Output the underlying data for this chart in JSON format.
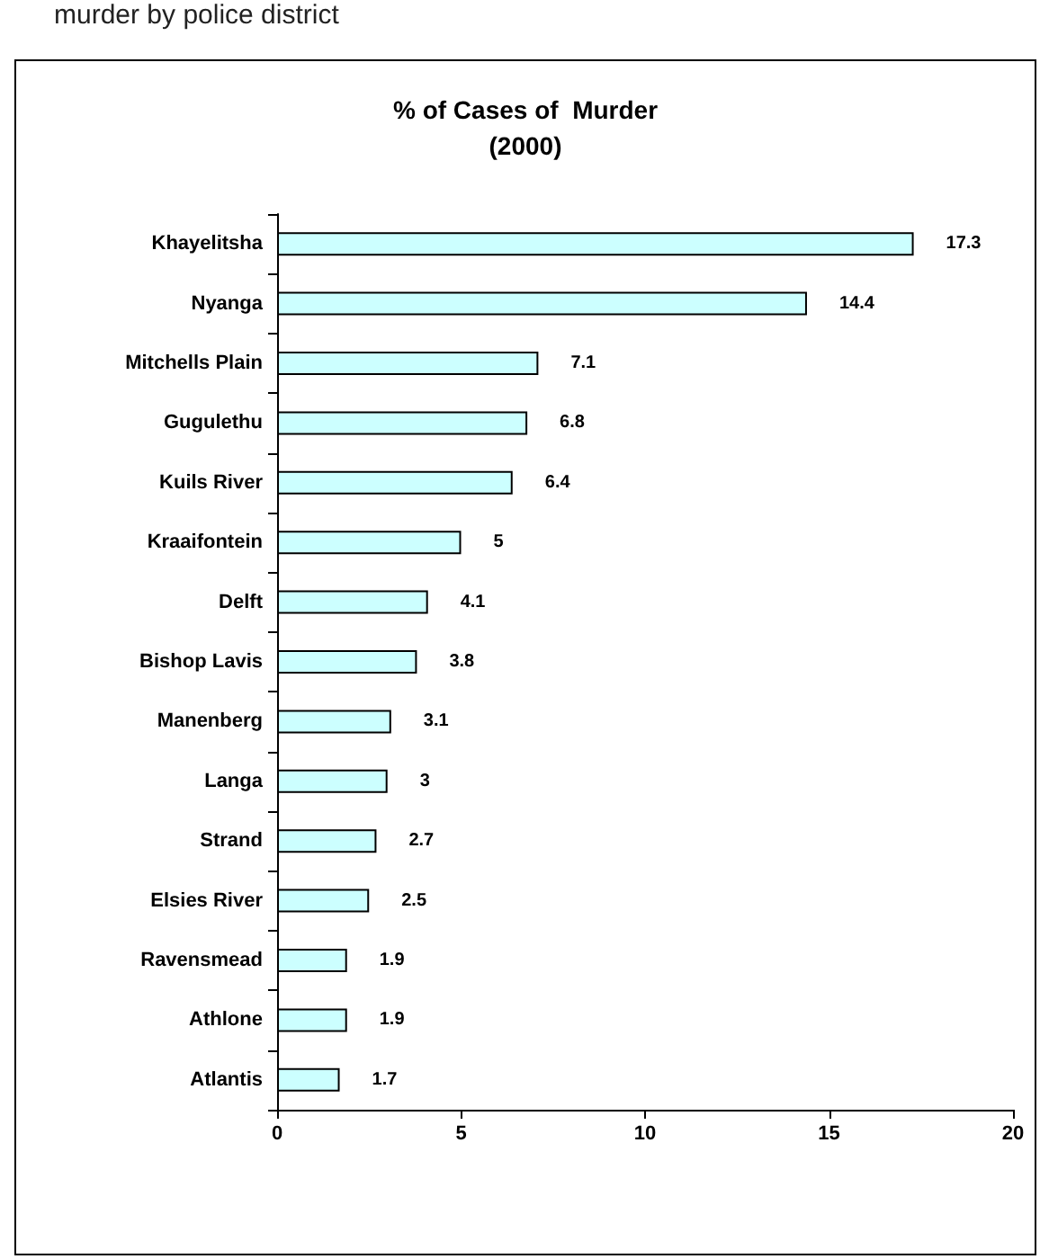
{
  "chart_data": {
    "type": "bar",
    "orientation": "horizontal",
    "title": "% of Cases of  Murder\n(2000)",
    "annotations": [
      "murder by police district"
    ],
    "categories": [
      "Khayelitsha",
      "Nyanga",
      "Mitchells Plain",
      "Gugulethu",
      "Kuils River",
      "Kraaifontein",
      "Delft",
      "Bishop Lavis",
      "Manenberg",
      "Langa",
      "Strand",
      "Elsies River",
      "Ravensmead",
      "Athlone",
      "Atlantis"
    ],
    "values": [
      17.3,
      14.4,
      7.1,
      6.8,
      6.4,
      5,
      4.1,
      3.8,
      3.1,
      3,
      2.7,
      2.5,
      1.9,
      1.9,
      1.7
    ],
    "color": "#ccffff",
    "xlim": [
      0,
      20
    ],
    "xticks": [
      0,
      5,
      10,
      15,
      20
    ],
    "grid": false,
    "data_labels": true
  }
}
